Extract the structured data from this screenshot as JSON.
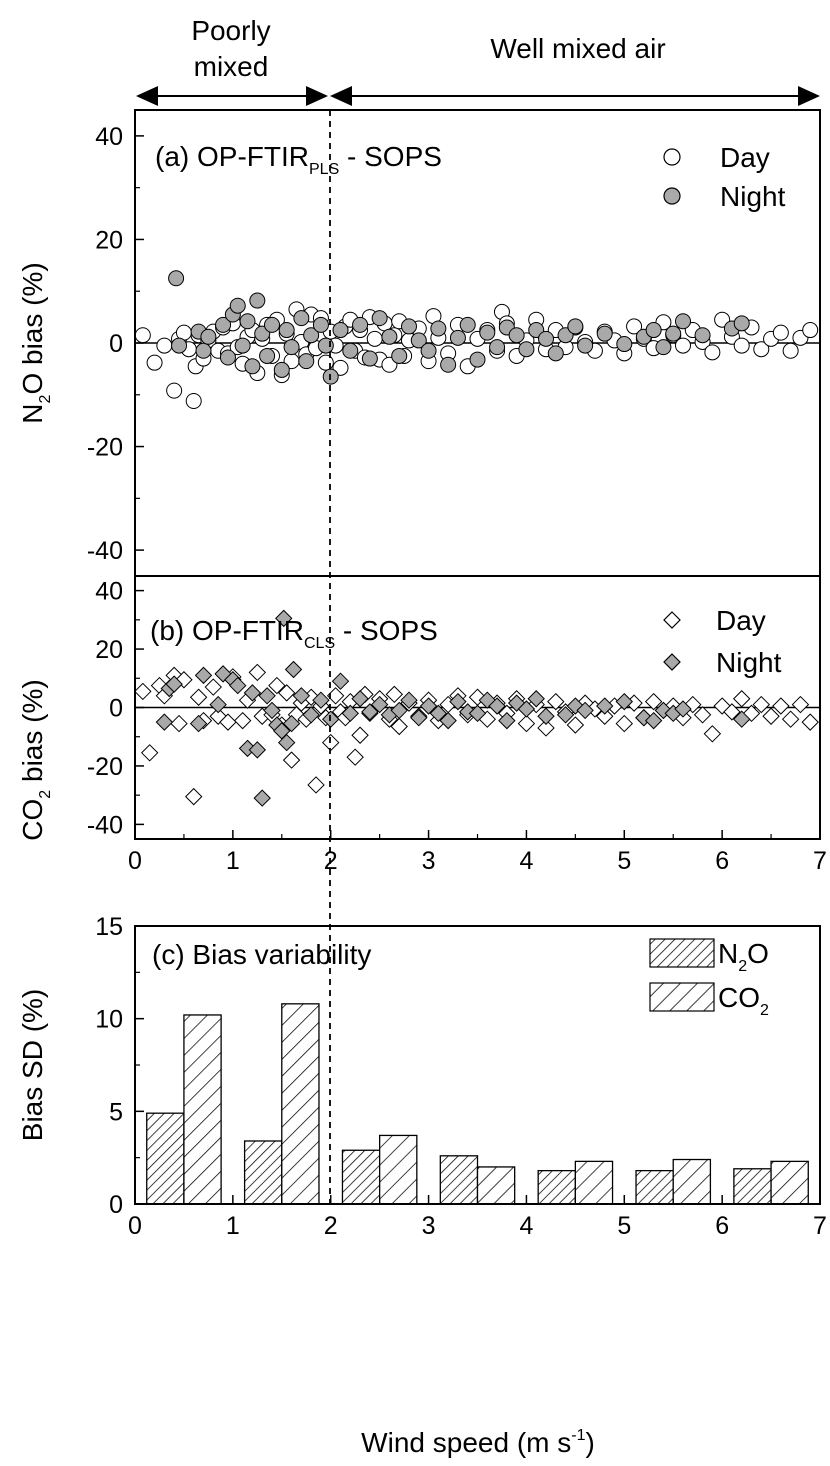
{
  "header": {
    "poorly_line1": "Poorly",
    "poorly_line2": "mixed",
    "well": "Well mixed air"
  },
  "panel_a": {
    "title_main": "(a) OP-FTIR",
    "title_sub": "PLS",
    "title_tail": " - SOPS",
    "ylabel_pre": "N",
    "ylabel_sub": "2",
    "ylabel_post": "O bias (%)",
    "legend": [
      "Day",
      "Night"
    ]
  },
  "panel_b": {
    "title_main": "(b) OP-FTIR",
    "title_sub": "CLS",
    "title_tail": " - SOPS",
    "ylabel_pre": "CO",
    "ylabel_sub": "2",
    "ylabel_post": " bias (%)",
    "legend": [
      "Day",
      "Night"
    ]
  },
  "panel_c": {
    "title": "(c) Bias variability",
    "ylabel": "Bias SD (%)",
    "legend_n2o_pre": "N",
    "legend_n2o_sub": "2",
    "legend_n2o_post": "O",
    "legend_co2_pre": "CO",
    "legend_co2_sub": "2"
  },
  "xlabel_pre": "Wind speed (m s",
  "xlabel_sup": "-1",
  "xlabel_post": ")",
  "colors": {
    "night_fill": "#a9a9a9",
    "day_fill": "#ffffff",
    "stroke": "#000000"
  },
  "chart_data": [
    {
      "type": "scatter",
      "panel": "a",
      "xlim": [
        0,
        7
      ],
      "ylim": [
        -45,
        45
      ],
      "yticks": [
        -40,
        -20,
        0,
        20,
        40
      ],
      "vline_x": 2,
      "series": [
        {
          "name": "Day",
          "x": [
            0.08,
            0.2,
            0.3,
            0.4,
            0.45,
            0.5,
            0.55,
            0.6,
            0.62,
            0.65,
            0.7,
            0.75,
            0.8,
            0.85,
            0.9,
            0.95,
            1.0,
            1.05,
            1.1,
            1.15,
            1.2,
            1.25,
            1.3,
            1.35,
            1.4,
            1.45,
            1.5,
            1.55,
            1.6,
            1.65,
            1.7,
            1.75,
            1.8,
            1.85,
            1.9,
            1.95,
            2.0,
            2.05,
            2.1,
            2.15,
            2.2,
            2.25,
            2.3,
            2.35,
            2.4,
            2.45,
            2.5,
            2.55,
            2.6,
            2.65,
            2.7,
            2.75,
            2.8,
            2.9,
            3.0,
            3.05,
            3.1,
            3.2,
            3.3,
            3.4,
            3.5,
            3.6,
            3.7,
            3.75,
            3.8,
            3.9,
            4.0,
            4.1,
            4.2,
            4.3,
            4.4,
            4.5,
            4.6,
            4.7,
            4.8,
            4.9,
            5.0,
            5.1,
            5.2,
            5.3,
            5.4,
            5.5,
            5.6,
            5.7,
            5.8,
            5.9,
            6.0,
            6.1,
            6.2,
            6.3,
            6.4,
            6.5,
            6.6,
            6.7,
            6.8,
            6.9
          ],
          "y": [
            1.5,
            -3.8,
            -0.5,
            -9.2,
            0.8,
            2.0,
            -1.2,
            -11.2,
            -4.5,
            1.5,
            -3.0,
            0.5,
            2.2,
            -1.5,
            3.0,
            -2.0,
            3.8,
            -0.8,
            -4.0,
            1.2,
            2.5,
            -5.8,
            0.8,
            3.5,
            -2.5,
            4.5,
            -6.2,
            1.8,
            -3.5,
            6.5,
            0.2,
            -2.2,
            5.5,
            -1.0,
            4.8,
            -3.8,
            2.2,
            -0.5,
            -4.8,
            3.2,
            4.5,
            -1.5,
            2.5,
            -2.8,
            5.0,
            0.8,
            -3.2,
            3.8,
            -4.2,
            1.5,
            4.2,
            -2.5,
            0.5,
            2.8,
            -3.5,
            5.2,
            1.0,
            -2.0,
            3.5,
            -4.5,
            0.8,
            2.5,
            -1.5,
            6.0,
            3.8,
            -2.5,
            0.5,
            4.5,
            -1.2,
            2.5,
            -0.8,
            3.0,
            0.2,
            -1.5,
            2.2,
            0.5,
            -2.0,
            3.2,
            0.8,
            -1.0,
            4.0,
            1.5,
            -0.5,
            2.5,
            0.2,
            -1.8,
            4.5,
            1.2,
            -0.5,
            3.0,
            -1.2,
            0.8,
            2.0,
            -1.5,
            1.0,
            2.5
          ]
        },
        {
          "name": "Night",
          "x": [
            0.42,
            0.45,
            0.65,
            0.7,
            0.75,
            0.9,
            0.95,
            1.0,
            1.05,
            1.1,
            1.15,
            1.2,
            1.25,
            1.3,
            1.35,
            1.4,
            1.5,
            1.55,
            1.6,
            1.7,
            1.75,
            1.8,
            1.9,
            1.95,
            2.0,
            2.1,
            2.2,
            2.3,
            2.4,
            2.5,
            2.6,
            2.7,
            2.8,
            2.9,
            3.0,
            3.1,
            3.2,
            3.3,
            3.4,
            3.5,
            3.6,
            3.7,
            3.8,
            3.9,
            4.0,
            4.1,
            4.2,
            4.3,
            4.4,
            4.5,
            4.6,
            4.8,
            5.0,
            5.2,
            5.3,
            5.4,
            5.5,
            5.6,
            5.8,
            6.1,
            6.2
          ],
          "y": [
            12.5,
            -0.5,
            2.2,
            -1.5,
            1.2,
            3.5,
            -2.8,
            5.5,
            7.2,
            -0.5,
            4.2,
            -4.5,
            8.2,
            1.8,
            -2.5,
            3.5,
            -5.2,
            2.5,
            -0.8,
            4.8,
            -3.5,
            1.5,
            3.5,
            -0.5,
            -6.5,
            2.5,
            -1.5,
            3.5,
            -3.0,
            4.8,
            1.2,
            -2.5,
            3.2,
            0.5,
            -1.5,
            2.8,
            -4.2,
            1.0,
            3.5,
            -3.2,
            2.0,
            -0.8,
            3.0,
            1.5,
            -1.2,
            2.5,
            0.8,
            -2.0,
            1.5,
            3.2,
            -0.5,
            1.8,
            -0.2,
            1.2,
            2.5,
            -0.8,
            1.8,
            4.2,
            1.5,
            2.8,
            3.8
          ]
        }
      ]
    },
    {
      "type": "scatter",
      "panel": "b",
      "xlim": [
        0,
        7
      ],
      "ylim": [
        -45,
        45
      ],
      "yticks": [
        -40,
        -20,
        0,
        20,
        40
      ],
      "xticks": [
        0,
        1,
        2,
        3,
        4,
        5,
        6,
        7
      ],
      "vline_x": 2,
      "series": [
        {
          "name": "Day",
          "x": [
            0.08,
            0.15,
            0.25,
            0.3,
            0.4,
            0.45,
            0.5,
            0.6,
            0.65,
            0.7,
            0.8,
            0.85,
            0.95,
            1.0,
            1.1,
            1.15,
            1.25,
            1.3,
            1.4,
            1.45,
            1.5,
            1.55,
            1.6,
            1.65,
            1.7,
            1.75,
            1.8,
            1.85,
            1.9,
            1.95,
            2.0,
            2.05,
            2.1,
            2.15,
            2.2,
            2.25,
            2.3,
            2.35,
            2.4,
            2.5,
            2.6,
            2.65,
            2.7,
            2.8,
            2.9,
            3.0,
            3.1,
            3.2,
            3.3,
            3.4,
            3.5,
            3.6,
            3.7,
            3.8,
            3.9,
            4.0,
            4.1,
            4.2,
            4.3,
            4.4,
            4.5,
            4.6,
            4.7,
            4.8,
            4.9,
            5.0,
            5.1,
            5.2,
            5.3,
            5.4,
            5.5,
            5.6,
            5.7,
            5.8,
            5.9,
            6.0,
            6.1,
            6.2,
            6.3,
            6.4,
            6.5,
            6.6,
            6.7,
            6.8,
            6.9
          ],
          "y": [
            5.5,
            -15.5,
            7.5,
            4.0,
            11.0,
            -5.5,
            9.5,
            -30.5,
            3.5,
            -4.5,
            7.0,
            -3.0,
            -5.0,
            10.5,
            -4.5,
            2.5,
            12.0,
            -3.0,
            -2.5,
            7.5,
            -6.0,
            5.0,
            -18.0,
            -2.5,
            1.5,
            -4.0,
            3.5,
            -26.5,
            0.5,
            -3.5,
            -12.0,
            4.0,
            -1.5,
            -3.5,
            2.0,
            -17.0,
            -9.5,
            4.5,
            -2.0,
            3.0,
            -4.0,
            4.5,
            -6.5,
            1.5,
            -3.0,
            2.5,
            -4.5,
            1.0,
            4.0,
            -2.5,
            3.5,
            -4.0,
            1.5,
            -2.0,
            3.0,
            -5.5,
            1.0,
            -7.0,
            2.0,
            -1.5,
            -6.0,
            1.5,
            -0.5,
            -3.0,
            0.5,
            -5.5,
            1.5,
            -3.5,
            2.0,
            -1.0,
            0.5,
            -3.5,
            1.0,
            -2.5,
            -9.0,
            0.5,
            -1.5,
            3.0,
            -2.0,
            1.0,
            -3.0,
            0.5,
            -4.0,
            1.0,
            -5.0
          ]
        },
        {
          "name": "Night",
          "x": [
            0.3,
            0.35,
            0.4,
            0.65,
            0.7,
            0.85,
            0.9,
            1.0,
            1.05,
            1.15,
            1.2,
            1.25,
            1.3,
            1.35,
            1.4,
            1.45,
            1.5,
            1.52,
            1.55,
            1.6,
            1.62,
            1.7,
            1.8,
            1.9,
            2.0,
            2.1,
            2.2,
            2.3,
            2.4,
            2.5,
            2.6,
            2.7,
            2.8,
            2.9,
            3.0,
            3.1,
            3.2,
            3.3,
            3.4,
            3.5,
            3.6,
            3.7,
            3.8,
            3.9,
            4.0,
            4.1,
            4.2,
            4.4,
            4.5,
            4.6,
            4.8,
            5.0,
            5.2,
            5.3,
            5.4,
            5.5,
            5.6,
            6.2
          ],
          "y": [
            -5.0,
            6.5,
            8.0,
            -5.5,
            11.0,
            1.0,
            11.5,
            9.5,
            7.5,
            -14.0,
            5.0,
            -14.5,
            -31.0,
            4.0,
            -1.0,
            -6.0,
            -8.0,
            30.5,
            -12.0,
            -5.5,
            13.0,
            4.0,
            -2.5,
            2.5,
            -4.0,
            9.0,
            -2.0,
            3.0,
            -1.5,
            1.0,
            -2.5,
            -1.0,
            2.5,
            -3.5,
            0.5,
            -2.0,
            -4.5,
            2.0,
            -1.5,
            -2.0,
            2.5,
            0.5,
            -4.5,
            1.5,
            -0.5,
            3.0,
            -3.0,
            -2.5,
            0.5,
            -1.0,
            0.5,
            2.0,
            -3.5,
            -4.5,
            -1.0,
            -2.0,
            -0.5,
            -4.0
          ]
        }
      ]
    },
    {
      "type": "bar",
      "panel": "c",
      "xlim": [
        0,
        7
      ],
      "ylim": [
        0,
        15
      ],
      "yticks": [
        0,
        5,
        10,
        15
      ],
      "xticks": [
        0,
        1,
        2,
        3,
        4,
        5,
        6,
        7
      ],
      "vline_x": 2,
      "categories": [
        "0-1",
        "1-2",
        "2-3",
        "3-4",
        "4-5",
        "5-6",
        "6-7"
      ],
      "series": [
        {
          "name": "N2O",
          "values": [
            4.9,
            3.4,
            2.9,
            2.6,
            1.8,
            1.8,
            1.9
          ]
        },
        {
          "name": "CO2",
          "values": [
            10.2,
            10.8,
            3.7,
            2.0,
            2.3,
            2.4,
            2.3
          ]
        }
      ]
    }
  ]
}
